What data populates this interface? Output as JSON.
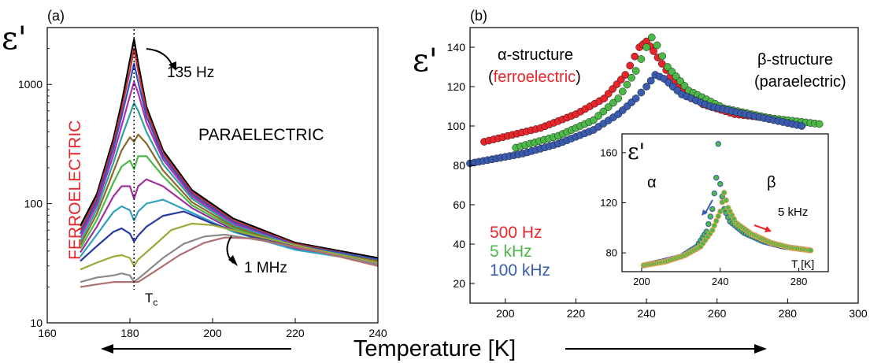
{
  "figure": {
    "xlabel": "Temperature [K]",
    "colors": {
      "red": "#e8252b",
      "green": "#4cb848",
      "blue": "#3a5bb0",
      "axis": "#000000"
    }
  },
  "chart_data": [
    {
      "panel": "(a)",
      "type": "line",
      "ylabel": "ε'",
      "yscale": "log",
      "xlim": [
        160,
        240
      ],
      "ylim": [
        10,
        3000
      ],
      "x_ticks": [
        160,
        180,
        200,
        220,
        240
      ],
      "y_ticks": [
        10,
        100,
        1000
      ],
      "annotations": {
        "top_freq": "135 Hz",
        "bottom_freq": "1 MHz",
        "phase_para": "PARAELECTRIC",
        "phase_ferro": "FERROELECTRIC",
        "tc": "T",
        "tc_sub": "c"
      },
      "tc_value": 181,
      "series": [
        {
          "color": "#000000",
          "values": [
            [
              168,
              65
            ],
            [
              172,
              120
            ],
            [
              176,
              350
            ],
            [
              178,
              700
            ],
            [
              180,
              1600
            ],
            [
              181,
              2400
            ],
            [
              182,
              1500
            ],
            [
              184,
              650
            ],
            [
              188,
              280
            ],
            [
              195,
              130
            ],
            [
              205,
              75
            ],
            [
              220,
              47
            ],
            [
              240,
              35
            ]
          ]
        },
        {
          "color": "#c03030",
          "values": [
            [
              168,
              60
            ],
            [
              172,
              112
            ],
            [
              176,
              320
            ],
            [
              178,
              620
            ],
            [
              180,
              1300
            ],
            [
              181,
              2000
            ],
            [
              182,
              1300
            ],
            [
              184,
              600
            ],
            [
              188,
              265
            ],
            [
              195,
              125
            ],
            [
              205,
              72
            ],
            [
              220,
              46
            ],
            [
              240,
              34
            ]
          ]
        },
        {
          "color": "#3050c0",
          "values": [
            [
              168,
              56
            ],
            [
              172,
              105
            ],
            [
              176,
              290
            ],
            [
              178,
              540
            ],
            [
              180,
              1050
            ],
            [
              181,
              1500
            ],
            [
              182,
              1050
            ],
            [
              184,
              540
            ],
            [
              188,
              250
            ],
            [
              195,
              120
            ],
            [
              205,
              70
            ],
            [
              220,
              45
            ],
            [
              240,
              34
            ]
          ]
        },
        {
          "color": "#b030b0",
          "values": [
            [
              168,
              52
            ],
            [
              172,
              98
            ],
            [
              176,
              255
            ],
            [
              178,
              450
            ],
            [
              180,
              800
            ],
            [
              181,
              1050
            ],
            [
              182,
              850
            ],
            [
              184,
              480
            ],
            [
              188,
              235
            ],
            [
              195,
              115
            ],
            [
              205,
              68
            ],
            [
              220,
              44
            ],
            [
              240,
              33
            ]
          ]
        },
        {
          "color": "#30a0a0",
          "values": [
            [
              168,
              48
            ],
            [
              172,
              90
            ],
            [
              176,
              220
            ],
            [
              178,
              360
            ],
            [
              180,
              560
            ],
            [
              181,
              700
            ],
            [
              182,
              600
            ],
            [
              184,
              400
            ],
            [
              188,
              215
            ],
            [
              195,
              110
            ],
            [
              205,
              66
            ],
            [
              220,
              44
            ],
            [
              240,
              33
            ]
          ]
        },
        {
          "color": "#8a6a2a",
          "values": [
            [
              168,
              45
            ],
            [
              172,
              82
            ],
            [
              176,
              185
            ],
            [
              178,
              280
            ],
            [
              180,
              360
            ],
            [
              181,
              330
            ],
            [
              182,
              380
            ],
            [
              184,
              320
            ],
            [
              188,
              190
            ],
            [
              195,
              103
            ],
            [
              205,
              64
            ],
            [
              220,
              43
            ],
            [
              240,
              33
            ]
          ]
        },
        {
          "color": "#4cb848",
          "values": [
            [
              168,
              42
            ],
            [
              172,
              73
            ],
            [
              176,
              150
            ],
            [
              178,
              205
            ],
            [
              180,
              230
            ],
            [
              181,
              195
            ],
            [
              182,
              250
            ],
            [
              184,
              250
            ],
            [
              188,
              170
            ],
            [
              195,
              97
            ],
            [
              205,
              62
            ],
            [
              220,
              42
            ],
            [
              240,
              32
            ]
          ]
        },
        {
          "color": "#a030a0",
          "values": [
            [
              168,
              39
            ],
            [
              172,
              64
            ],
            [
              176,
              115
            ],
            [
              178,
              140
            ],
            [
              180,
              140
            ],
            [
              181,
              110
            ],
            [
              182,
              140
            ],
            [
              184,
              160
            ],
            [
              188,
              140
            ],
            [
              195,
              92
            ],
            [
              205,
              60
            ],
            [
              220,
              42
            ],
            [
              240,
              32
            ]
          ]
        },
        {
          "color": "#30a0c0",
          "values": [
            [
              168,
              36
            ],
            [
              172,
              55
            ],
            [
              176,
              85
            ],
            [
              178,
              95
            ],
            [
              180,
              88
            ],
            [
              181,
              72
            ],
            [
              182,
              86
            ],
            [
              184,
              100
            ],
            [
              188,
              108
            ],
            [
              195,
              84
            ],
            [
              205,
              58
            ],
            [
              220,
              41
            ],
            [
              240,
              32
            ]
          ]
        },
        {
          "color": "#2a3aa0",
          "values": [
            [
              168,
              33
            ],
            [
              172,
              44
            ],
            [
              176,
              58
            ],
            [
              178,
              62
            ],
            [
              180,
              56
            ],
            [
              181,
              48
            ],
            [
              182,
              54
            ],
            [
              184,
              64
            ],
            [
              188,
              79
            ],
            [
              193,
              86
            ],
            [
              200,
              68
            ],
            [
              210,
              52
            ],
            [
              225,
              40
            ],
            [
              240,
              32
            ]
          ]
        },
        {
          "color": "#9aaa3a",
          "values": [
            [
              168,
              28
            ],
            [
              172,
              32
            ],
            [
              176,
              36
            ],
            [
              178,
              37
            ],
            [
              180,
              35
            ],
            [
              181,
              30
            ],
            [
              182,
              34
            ],
            [
              186,
              45
            ],
            [
              190,
              60
            ],
            [
              195,
              68
            ],
            [
              200,
              66
            ],
            [
              210,
              54
            ],
            [
              225,
              41
            ],
            [
              240,
              32
            ]
          ]
        },
        {
          "color": "#8a8a8a",
          "values": [
            [
              168,
              22
            ],
            [
              172,
              24
            ],
            [
              176,
              25
            ],
            [
              178,
              26
            ],
            [
              180,
              25
            ],
            [
              181,
              22
            ],
            [
              183,
              25
            ],
            [
              188,
              35
            ],
            [
              193,
              46
            ],
            [
              198,
              53
            ],
            [
              203,
              55
            ],
            [
              212,
              49
            ],
            [
              225,
              40
            ],
            [
              240,
              31
            ]
          ]
        },
        {
          "color": "#b07070",
          "values": [
            [
              168,
              20
            ],
            [
              172,
              21
            ],
            [
              176,
              22
            ],
            [
              180,
              22
            ],
            [
              182,
              22
            ],
            [
              186,
              27
            ],
            [
              192,
              37
            ],
            [
              198,
              47
            ],
            [
              203,
              52
            ],
            [
              210,
              51
            ],
            [
              225,
              40
            ],
            [
              240,
              30
            ]
          ]
        }
      ]
    },
    {
      "panel": "(b)",
      "type": "scatter",
      "ylabel": "ε'",
      "xlim": [
        190,
        300
      ],
      "ylim": [
        10,
        150
      ],
      "x_ticks": [
        200,
        220,
        240,
        260,
        280,
        300
      ],
      "y_ticks": [
        20,
        40,
        60,
        80,
        100,
        120,
        140
      ],
      "annotations": {
        "alpha_line1": "α-structure",
        "alpha_paren_open": "(",
        "alpha_line2": "ferroelectric",
        "alpha_paren_close": ")",
        "beta_line1": "β-structure",
        "beta_line2": "(paraelectric)"
      },
      "series": [
        {
          "name": "500 Hz",
          "color": "#e8252b",
          "values": [
            [
              194,
              92
            ],
            [
              210,
              99
            ],
            [
              220,
              106
            ],
            [
              228,
              114
            ],
            [
              234,
              126
            ],
            [
              238,
              140
            ],
            [
              240,
              143
            ],
            [
              242,
              138
            ],
            [
              248,
              122
            ],
            [
              256,
              111
            ],
            [
              265,
              106
            ],
            [
              275,
              104
            ]
          ]
        },
        {
          "name": "5 kHz",
          "color": "#4cb848",
          "values": [
            [
              203,
              89
            ],
            [
              215,
              95
            ],
            [
              225,
              103
            ],
            [
              232,
              114
            ],
            [
              237,
              128
            ],
            [
              240,
              140
            ],
            [
              241.5,
              145
            ],
            [
              243,
              141
            ],
            [
              246,
              130
            ],
            [
              252,
              118
            ],
            [
              262,
              109
            ],
            [
              275,
              104
            ],
            [
              289,
              101
            ]
          ]
        },
        {
          "name": "100 kHz",
          "color": "#3a5bb0",
          "values": [
            [
              190,
              81
            ],
            [
              205,
              86
            ],
            [
              215,
              91
            ],
            [
              225,
              98
            ],
            [
              232,
              106
            ],
            [
              237,
              114
            ],
            [
              240,
              120
            ],
            [
              242.5,
              126
            ],
            [
              245,
              124
            ],
            [
              250,
              116
            ],
            [
              258,
              110
            ],
            [
              268,
              106
            ],
            [
              284,
              100
            ]
          ]
        }
      ]
    },
    {
      "panel": "inset",
      "type": "scatter",
      "ylabel": "ε'",
      "xlabel": "T [K]",
      "xlim": [
        190,
        295
      ],
      "ylim": [
        65,
        175
      ],
      "x_ticks": [
        200,
        240,
        280
      ],
      "y_ticks": [
        80,
        120,
        160
      ],
      "annotations": {
        "alpha": "α",
        "beta": "β",
        "freq": "5 kHz"
      },
      "series": [
        {
          "color": "#4cb848",
          "values": [
            [
              201,
              70
            ],
            [
              210,
              73
            ],
            [
              220,
              77
            ],
            [
              228,
              85
            ],
            [
              233,
              97
            ],
            [
              236,
              115
            ],
            [
              238,
              140
            ],
            [
              239,
              167
            ],
            [
              240,
              135
            ],
            [
              242,
              115
            ],
            [
              245,
              105
            ],
            [
              252,
              96
            ],
            [
              262,
              89
            ],
            [
              272,
              85
            ],
            [
              286,
              82
            ]
          ]
        },
        {
          "color": "#e8a050",
          "values": [
            [
              201,
              70
            ],
            [
              212,
              73
            ],
            [
              222,
              78
            ],
            [
              230,
              85
            ],
            [
              236,
              98
            ],
            [
              240,
              113
            ],
            [
              242,
              128
            ],
            [
              244,
              116
            ],
            [
              248,
              104
            ],
            [
              256,
              95
            ],
            [
              266,
              88
            ],
            [
              276,
              84
            ],
            [
              286,
              82
            ]
          ]
        }
      ]
    }
  ]
}
